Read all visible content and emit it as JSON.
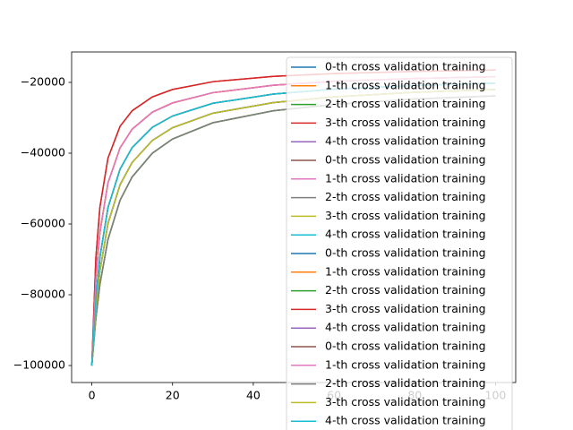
{
  "chart_data": {
    "type": "line",
    "x": [
      0,
      1,
      2,
      4,
      7,
      10,
      15,
      20,
      30,
      45,
      60,
      80,
      100
    ],
    "xlim": [
      -5,
      105
    ],
    "xticks": [
      0,
      20,
      40,
      60,
      80,
      100
    ],
    "ylim": [
      -104800,
      -11400
    ],
    "yticks": [
      {
        "value": -100000,
        "label": "−100000"
      },
      {
        "value": -80000,
        "label": "−80000"
      },
      {
        "value": -60000,
        "label": "−60000"
      },
      {
        "value": -40000,
        "label": "−40000"
      },
      {
        "value": -20000,
        "label": "−20000"
      }
    ],
    "legend": "upper right",
    "series": [
      {
        "name": "0-th cross validation training",
        "color": "#1f77b4",
        "values": [
          -100000,
          -81300,
          -69400,
          -55400,
          -44500,
          -38400,
          -32700,
          -29500,
          -25900,
          -23300,
          -21900,
          -20900,
          -20200
        ]
      },
      {
        "name": "1-th cross validation training",
        "color": "#ff7f0e",
        "values": [
          -100000,
          -75500,
          -62400,
          -48400,
          -38500,
          -33200,
          -28400,
          -25800,
          -22900,
          -20800,
          -19700,
          -18900,
          -18400
        ]
      },
      {
        "name": "2-th cross validation training",
        "color": "#2ca02c",
        "values": [
          -100000,
          -84000,
          -73300,
          -59900,
          -48900,
          -42600,
          -36400,
          -32800,
          -28700,
          -25700,
          -24100,
          -22800,
          -22000
        ]
      },
      {
        "name": "3-th cross validation training",
        "color": "#d62728",
        "values": [
          -100000,
          -69600,
          -55300,
          -41400,
          -32400,
          -28000,
          -24100,
          -22000,
          -19800,
          -18300,
          -17500,
          -16900,
          -16500
        ]
      },
      {
        "name": "4-th cross validation training",
        "color": "#9467bd",
        "values": [
          -100000,
          -86700,
          -77100,
          -64400,
          -53300,
          -46700,
          -40000,
          -36000,
          -31400,
          -28000,
          -26200,
          -24700,
          -23800
        ]
      },
      {
        "name": "0-th cross validation training",
        "color": "#8c564b",
        "values": [
          -100000,
          -75500,
          -62400,
          -48400,
          -38500,
          -33200,
          -28400,
          -25800,
          -22900,
          -20800,
          -19700,
          -18900,
          -18400
        ]
      },
      {
        "name": "1-th cross validation training",
        "color": "#e377c2",
        "values": [
          -100000,
          -81300,
          -69400,
          -55400,
          -44500,
          -38400,
          -32700,
          -29500,
          -25900,
          -23300,
          -21900,
          -20900,
          -20200
        ]
      },
      {
        "name": "2-th cross validation training",
        "color": "#7f7f7f",
        "values": [
          -100000,
          -84000,
          -73300,
          -59900,
          -48900,
          -42600,
          -36400,
          -32800,
          -28700,
          -25700,
          -24100,
          -22800,
          -22000
        ]
      },
      {
        "name": "3-th cross validation training",
        "color": "#bcbd22",
        "values": [
          -100000,
          -86700,
          -77100,
          -64400,
          -53300,
          -46700,
          -40000,
          -36000,
          -31400,
          -28000,
          -26200,
          -24700,
          -23800
        ]
      },
      {
        "name": "4-th cross validation training",
        "color": "#17becf",
        "values": [
          -100000,
          -81300,
          -69400,
          -55400,
          -44500,
          -38400,
          -32700,
          -29500,
          -25900,
          -23300,
          -21900,
          -20900,
          -20200
        ]
      },
      {
        "name": "0-th cross validation training",
        "color": "#1f77b4",
        "values": [
          -100000,
          -84000,
          -73300,
          -59900,
          -48900,
          -42600,
          -36400,
          -32800,
          -28700,
          -25700,
          -24100,
          -22800,
          -22000
        ]
      },
      {
        "name": "1-th cross validation training",
        "color": "#ff7f0e",
        "values": [
          -100000,
          -75500,
          -62400,
          -48400,
          -38500,
          -33200,
          -28400,
          -25800,
          -22900,
          -20800,
          -19700,
          -18900,
          -18400
        ]
      },
      {
        "name": "2-th cross validation training",
        "color": "#2ca02c",
        "values": [
          -100000,
          -86700,
          -77100,
          -64400,
          -53300,
          -46700,
          -40000,
          -36000,
          -31400,
          -28000,
          -26200,
          -24700,
          -23800
        ]
      },
      {
        "name": "3-th cross validation training",
        "color": "#d62728",
        "values": [
          -100000,
          -69600,
          -55300,
          -41400,
          -32400,
          -28000,
          -24100,
          -22000,
          -19800,
          -18300,
          -17500,
          -16900,
          -16500
        ]
      },
      {
        "name": "4-th cross validation training",
        "color": "#9467bd",
        "values": [
          -100000,
          -84000,
          -73300,
          -59900,
          -48900,
          -42600,
          -36400,
          -32800,
          -28700,
          -25700,
          -24100,
          -22800,
          -22000
        ]
      },
      {
        "name": "0-th cross validation training",
        "color": "#8c564b",
        "values": [
          -100000,
          -81300,
          -69400,
          -55400,
          -44500,
          -38400,
          -32700,
          -29500,
          -25900,
          -23300,
          -21900,
          -20900,
          -20200
        ]
      },
      {
        "name": "1-th cross validation training",
        "color": "#e377c2",
        "values": [
          -100000,
          -75500,
          -62400,
          -48400,
          -38500,
          -33200,
          -28400,
          -25800,
          -22900,
          -20800,
          -19700,
          -18900,
          -18400
        ]
      },
      {
        "name": "2-th cross validation training",
        "color": "#7f7f7f",
        "values": [
          -100000,
          -86700,
          -77100,
          -64400,
          -53300,
          -46700,
          -40000,
          -36000,
          -31400,
          -28000,
          -26200,
          -24700,
          -23800
        ]
      },
      {
        "name": "3-th cross validation training",
        "color": "#bcbd22",
        "values": [
          -100000,
          -84000,
          -73300,
          -59900,
          -48900,
          -42600,
          -36400,
          -32800,
          -28700,
          -25700,
          -24100,
          -22800,
          -22000
        ]
      },
      {
        "name": "4-th cross validation training",
        "color": "#17becf",
        "values": [
          -100000,
          -81300,
          -69400,
          -55400,
          -44500,
          -38400,
          -32700,
          -29500,
          -25900,
          -23300,
          -21900,
          -20900,
          -20200
        ]
      }
    ]
  }
}
